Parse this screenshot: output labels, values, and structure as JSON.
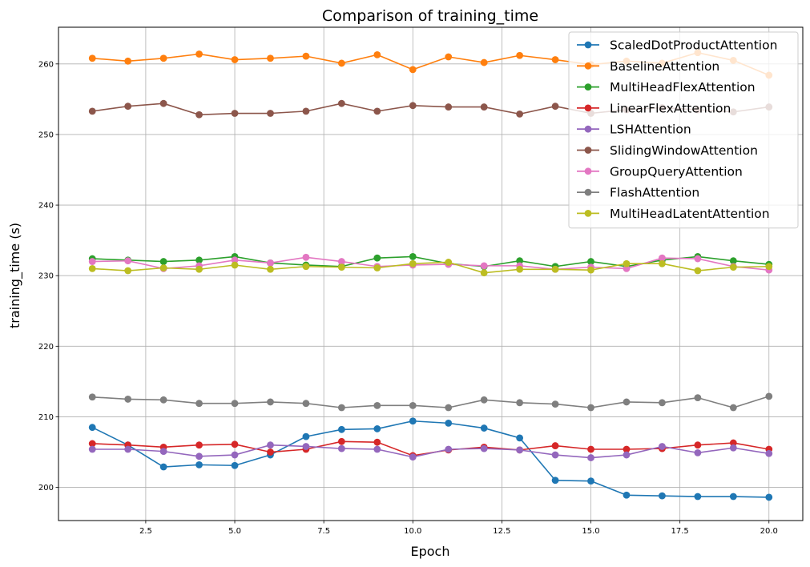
{
  "chart_data": {
    "type": "line",
    "title": "Comparison of training_time",
    "xlabel": "Epoch",
    "ylabel": "training_time (s)",
    "xlim": [
      0.05,
      20.95
    ],
    "ylim": [
      195.3,
      265.2
    ],
    "x_ticks": [
      2.5,
      5.0,
      7.5,
      10.0,
      12.5,
      15.0,
      17.5,
      20.0
    ],
    "x_tick_labels": [
      "2.5",
      "5.0",
      "7.5",
      "10.0",
      "12.5",
      "15.0",
      "17.5",
      "20.0"
    ],
    "y_ticks": [
      200,
      210,
      220,
      230,
      240,
      250,
      260
    ],
    "y_tick_labels": [
      "200",
      "210",
      "220",
      "230",
      "240",
      "250",
      "260"
    ],
    "grid": true,
    "legend_position": "top-right",
    "x": [
      1,
      2,
      3,
      4,
      5,
      6,
      7,
      8,
      9,
      10,
      11,
      12,
      13,
      14,
      15,
      16,
      17,
      18,
      19,
      20
    ],
    "series": [
      {
        "name": "ScaledDotProductAttention",
        "color": "#1f77b4",
        "values": [
          208.5,
          206.0,
          202.9,
          203.2,
          203.1,
          204.6,
          207.2,
          208.2,
          208.3,
          209.4,
          209.1,
          208.4,
          207.0,
          201.0,
          200.9,
          198.9,
          198.8,
          198.7,
          198.7,
          198.6
        ]
      },
      {
        "name": "BaselineAttention",
        "color": "#ff7f0e",
        "values": [
          260.8,
          260.4,
          260.8,
          261.4,
          260.6,
          260.8,
          261.1,
          260.1,
          261.3,
          259.2,
          261.0,
          260.2,
          261.2,
          260.6,
          259.9,
          260.4,
          260.1,
          261.6,
          260.5,
          258.4
        ]
      },
      {
        "name": "MultiHeadFlexAttention",
        "color": "#2ca02c",
        "values": [
          232.4,
          232.2,
          232.0,
          232.2,
          232.7,
          231.8,
          231.5,
          231.3,
          232.5,
          232.7,
          231.7,
          231.3,
          232.1,
          231.3,
          232.0,
          231.3,
          232.2,
          232.7,
          232.1,
          231.6
        ]
      },
      {
        "name": "LinearFlexAttention",
        "color": "#d62728",
        "values": [
          206.2,
          206.0,
          205.7,
          206.0,
          206.1,
          205.0,
          205.4,
          206.5,
          206.4,
          204.5,
          205.3,
          205.7,
          205.3,
          205.9,
          205.4,
          205.4,
          205.5,
          206.0,
          206.3,
          205.4
        ]
      },
      {
        "name": "LSHAttention",
        "color": "#9467bd",
        "values": [
          205.4,
          205.4,
          205.1,
          204.4,
          204.6,
          206.0,
          205.8,
          205.5,
          205.4,
          204.3,
          205.4,
          205.5,
          205.3,
          204.6,
          204.2,
          204.6,
          205.8,
          204.9,
          205.6,
          204.8
        ]
      },
      {
        "name": "SlidingWindowAttention",
        "color": "#8c564b",
        "values": [
          253.3,
          254.0,
          254.4,
          252.8,
          253.0,
          253.0,
          253.3,
          254.4,
          253.3,
          254.1,
          253.9,
          253.9,
          252.9,
          254.0,
          253.0,
          253.5,
          253.8,
          253.5,
          253.2,
          253.9
        ]
      },
      {
        "name": "GroupQueryAttention",
        "color": "#e377c2",
        "values": [
          232.0,
          232.1,
          231.0,
          231.4,
          232.2,
          231.8,
          232.6,
          232.0,
          231.3,
          231.5,
          231.6,
          231.4,
          231.4,
          230.9,
          231.2,
          231.0,
          232.5,
          232.4,
          231.3,
          230.8
        ]
      },
      {
        "name": "FlashAttention",
        "color": "#7f7f7f",
        "values": [
          212.8,
          212.5,
          212.4,
          211.9,
          211.9,
          212.1,
          211.9,
          211.3,
          211.6,
          211.6,
          211.3,
          212.4,
          212.0,
          211.8,
          211.3,
          212.1,
          212.0,
          212.7,
          211.3,
          212.9
        ]
      },
      {
        "name": "MultiHeadLatentAttention",
        "color": "#bcbd22",
        "values": [
          231.0,
          230.7,
          231.1,
          230.9,
          231.5,
          230.9,
          231.3,
          231.2,
          231.1,
          231.7,
          231.9,
          230.4,
          230.9,
          230.9,
          230.8,
          231.7,
          231.7,
          230.7,
          231.2,
          231.3
        ]
      }
    ]
  }
}
